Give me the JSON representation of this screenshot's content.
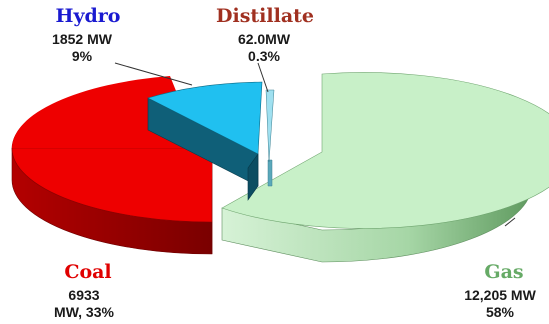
{
  "chart_data": {
    "type": "pie",
    "style": "3d-exploded",
    "slices": [
      {
        "name": "Gas",
        "value_label": "12,205 MW",
        "percent_label": "58%",
        "value": 12205,
        "percent": 58,
        "color": "#c8f0c8",
        "side_color": "#9ccf9c",
        "label_color": "#66aa66"
      },
      {
        "name": "Coal",
        "value_label": "6933",
        "value_label2": "MW, 33%",
        "value": 6933,
        "percent": 33,
        "color": "#ee0000",
        "side_color": "#a30000",
        "label_color": "#e00000"
      },
      {
        "name": "Hydro",
        "value_label": "1852 MW",
        "percent_label": "9%",
        "value": 1852,
        "percent": 9,
        "color": "#20c0f0",
        "side_color": "#0f5f78",
        "label_color": "#1a1ad0"
      },
      {
        "name": "Distillate",
        "value_label": "62.0MW",
        "percent_label": "0.3%",
        "value": 62.0,
        "percent": 0.3,
        "color": "#9fe0f0",
        "side_color": "#5aa8bb",
        "label_color": "#a03020"
      }
    ]
  }
}
